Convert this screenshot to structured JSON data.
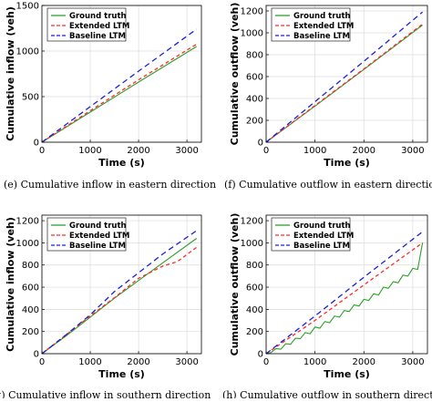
{
  "captions": [
    "(e) Cumulative inflow in eastern direction",
    "(f) Cumulative outflow in eastern directio",
    "(g) Cumulative inflow in southern direction",
    "(h) Cumulative outflow in southern direction"
  ],
  "colors": {
    "ground_truth": "#2ca02c",
    "extended_ltm": "#ff2a2a",
    "baseline_ltm": "#1f1fd6"
  },
  "chart_data": [
    {
      "type": "line",
      "xlabel": "Time (s)",
      "ylabel": "Cumulative inflow (veh)",
      "xlim": [
        0,
        3300
      ],
      "ylim": [
        0,
        1500
      ],
      "xticks": [
        0,
        1000,
        2000,
        3000
      ],
      "yticks": [
        0,
        500,
        1000,
        1500
      ],
      "grid": true,
      "legend_position": "top-left",
      "series": [
        {
          "name": "Ground truth",
          "style": "solid",
          "color_key": "ground_truth",
          "x": [
            0,
            1000,
            2000,
            3200
          ],
          "y": [
            0,
            330,
            660,
            1050
          ]
        },
        {
          "name": "Extended LTM",
          "style": "dashed",
          "color_key": "extended_ltm",
          "x": [
            0,
            1000,
            2000,
            3200
          ],
          "y": [
            0,
            345,
            685,
            1075
          ]
        },
        {
          "name": "Baseline LTM",
          "style": "dashed",
          "color_key": "baseline_ltm",
          "x": [
            0,
            1000,
            2000,
            3200
          ],
          "y": [
            0,
            390,
            780,
            1240
          ]
        }
      ]
    },
    {
      "type": "line",
      "xlabel": "Time (s)",
      "ylabel": "Cumulative outflow (veh)",
      "xlim": [
        0,
        3300
      ],
      "ylim": [
        0,
        1250
      ],
      "xticks": [
        0,
        1000,
        2000,
        3000
      ],
      "yticks": [
        0,
        200,
        400,
        600,
        800,
        1000,
        1200
      ],
      "grid": true,
      "legend_position": "top-left",
      "series": [
        {
          "name": "Ground truth",
          "style": "solid",
          "color_key": "ground_truth",
          "x": [
            0,
            1000,
            2000,
            3200
          ],
          "y": [
            0,
            330,
            665,
            1070
          ]
        },
        {
          "name": "Extended LTM",
          "style": "dashed",
          "color_key": "extended_ltm",
          "x": [
            0,
            1000,
            2000,
            3200
          ],
          "y": [
            0,
            335,
            670,
            1080
          ]
        },
        {
          "name": "Baseline LTM",
          "style": "dashed",
          "color_key": "baseline_ltm",
          "x": [
            0,
            1000,
            2000,
            3200
          ],
          "y": [
            0,
            370,
            740,
            1190
          ]
        }
      ]
    },
    {
      "type": "line",
      "xlabel": "Time (s)",
      "ylabel": "Cumulative inflow (veh)",
      "xlim": [
        0,
        3300
      ],
      "ylim": [
        0,
        1250
      ],
      "xticks": [
        0,
        1000,
        2000,
        3000
      ],
      "yticks": [
        0,
        200,
        400,
        600,
        800,
        1000,
        1200
      ],
      "grid": true,
      "legend_position": "top-left",
      "series": [
        {
          "name": "Ground truth",
          "style": "solid",
          "color_key": "ground_truth",
          "x": [
            0,
            500,
            1000,
            1500,
            2000,
            2500,
            3200
          ],
          "y": [
            0,
            160,
            330,
            500,
            660,
            820,
            1040
          ]
        },
        {
          "name": "Extended LTM",
          "style": "dashed",
          "color_key": "extended_ltm",
          "x": [
            0,
            500,
            1000,
            1500,
            2000,
            2500,
            2800,
            3200
          ],
          "y": [
            0,
            170,
            340,
            505,
            680,
            790,
            830,
            960
          ]
        },
        {
          "name": "Baseline LTM",
          "style": "dashed",
          "color_key": "baseline_ltm",
          "x": [
            0,
            500,
            1000,
            1500,
            2000,
            2500,
            3200
          ],
          "y": [
            0,
            170,
            350,
            560,
            730,
            900,
            1110
          ]
        }
      ]
    },
    {
      "type": "line",
      "xlabel": "Time (s)",
      "ylabel": "Cumulative outflow (veh)",
      "xlim": [
        0,
        3300
      ],
      "ylim": [
        0,
        1250
      ],
      "xticks": [
        0,
        1000,
        2000,
        3000
      ],
      "yticks": [
        0,
        200,
        400,
        600,
        800,
        1000,
        1200
      ],
      "grid": true,
      "legend_position": "top-left",
      "series": [
        {
          "name": "Ground truth",
          "style": "solid",
          "color_key": "ground_truth",
          "x": [
            0,
            100,
            200,
            300,
            400,
            500,
            600,
            700,
            800,
            900,
            1000,
            1100,
            1200,
            1300,
            1400,
            1500,
            1600,
            1700,
            1800,
            1900,
            2000,
            2100,
            2200,
            2300,
            2400,
            2500,
            2600,
            2700,
            2800,
            2900,
            3000,
            3100,
            3200
          ],
          "y": [
            0,
            10,
            45,
            40,
            90,
            85,
            140,
            135,
            190,
            180,
            240,
            230,
            290,
            280,
            340,
            330,
            390,
            380,
            440,
            430,
            490,
            480,
            540,
            530,
            600,
            590,
            650,
            640,
            710,
            700,
            770,
            760,
            1000
          ]
        },
        {
          "name": "Extended LTM",
          "style": "dashed",
          "color_key": "extended_ltm",
          "x": [
            0,
            1000,
            2000,
            3200
          ],
          "y": [
            0,
            300,
            620,
            1000
          ]
        },
        {
          "name": "Baseline LTM",
          "style": "dashed",
          "color_key": "baseline_ltm",
          "x": [
            0,
            1000,
            2000,
            3200
          ],
          "y": [
            0,
            340,
            690,
            1100
          ]
        }
      ]
    }
  ]
}
